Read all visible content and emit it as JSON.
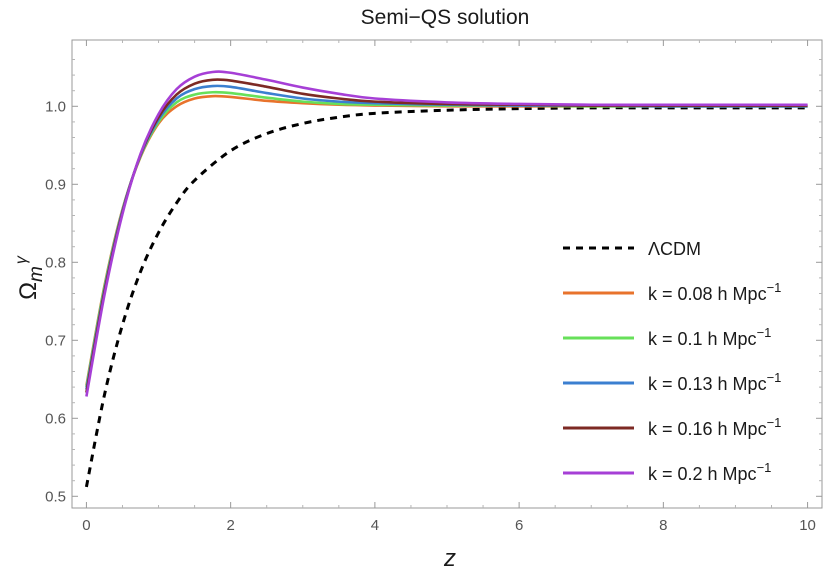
{
  "chart_data": {
    "type": "line",
    "title": "Semi−QS solution",
    "xlabel": "z",
    "ylabel_base": "Ω",
    "ylabel_sub": "m",
    "ylabel_sup": "γ",
    "xlim": [
      -0.2,
      10.2
    ],
    "ylim": [
      0.485,
      1.085
    ],
    "xticks": [
      0,
      2,
      4,
      6,
      8,
      10
    ],
    "yticks": [
      0.5,
      0.6,
      0.7,
      0.8,
      0.9,
      1.0
    ],
    "ytick_labels": [
      "0.5",
      "0.6",
      "0.7",
      "0.8",
      "0.9",
      "1.0"
    ],
    "grid": false,
    "legend_position": "right",
    "series": [
      {
        "name": "ΛCDM",
        "color": "#000000",
        "dashed": true,
        "x": [
          0,
          0.25,
          0.5,
          0.75,
          1.0,
          1.25,
          1.5,
          2.0,
          2.5,
          3.0,
          3.5,
          4.0,
          5.0,
          6.0,
          7.0,
          8.0,
          9.0,
          10.0
        ],
        "y": [
          0.512,
          0.63,
          0.72,
          0.788,
          0.838,
          0.876,
          0.905,
          0.943,
          0.965,
          0.978,
          0.986,
          0.991,
          0.995,
          0.997,
          0.998,
          0.998,
          0.998,
          0.998
        ]
      },
      {
        "name": "k = 0.08 h Mpc",
        "name_sup": "−1",
        "color": "#e8732c",
        "dashed": false,
        "x": [
          0,
          0.25,
          0.5,
          0.75,
          1.0,
          1.25,
          1.5,
          1.75,
          2.0,
          2.5,
          3.0,
          3.5,
          4.0,
          5.0,
          6.0,
          7.0,
          8.0,
          10.0
        ],
        "y": [
          0.642,
          0.77,
          0.868,
          0.935,
          0.978,
          1.0,
          1.01,
          1.013,
          1.012,
          1.007,
          1.004,
          1.002,
          1.001,
          1.0,
          1.0,
          1.0,
          1.0,
          1.0
        ]
      },
      {
        "name": "k = 0.1 h Mpc",
        "name_sup": "−1",
        "color": "#67e05a",
        "dashed": false,
        "x": [
          0,
          0.25,
          0.5,
          0.75,
          1.0,
          1.25,
          1.5,
          1.75,
          2.0,
          2.5,
          3.0,
          3.5,
          4.0,
          5.0,
          6.0,
          7.0,
          8.0,
          10.0
        ],
        "y": [
          0.64,
          0.768,
          0.867,
          0.936,
          0.98,
          1.005,
          1.015,
          1.018,
          1.017,
          1.011,
          1.006,
          1.003,
          1.002,
          1.001,
          1.001,
          1.0,
          1.0,
          1.0
        ]
      },
      {
        "name": "k = 0.13 h Mpc",
        "name_sup": "−1",
        "color": "#3b7fd0",
        "dashed": false,
        "x": [
          0,
          0.25,
          0.5,
          0.75,
          1.0,
          1.25,
          1.5,
          1.75,
          2.0,
          2.5,
          3.0,
          3.5,
          4.0,
          5.0,
          6.0,
          7.0,
          8.0,
          10.0
        ],
        "y": [
          0.637,
          0.765,
          0.866,
          0.937,
          0.983,
          1.01,
          1.022,
          1.026,
          1.025,
          1.017,
          1.01,
          1.006,
          1.004,
          1.002,
          1.001,
          1.001,
          1.0,
          1.0
        ]
      },
      {
        "name": "k = 0.16 h Mpc",
        "name_sup": "−1",
        "color": "#7d2a24",
        "dashed": false,
        "x": [
          0,
          0.25,
          0.5,
          0.75,
          1.0,
          1.25,
          1.5,
          1.75,
          2.0,
          2.5,
          3.0,
          3.5,
          4.0,
          5.0,
          6.0,
          7.0,
          8.0,
          10.0
        ],
        "y": [
          0.633,
          0.762,
          0.864,
          0.938,
          0.986,
          1.015,
          1.029,
          1.034,
          1.033,
          1.025,
          1.016,
          1.01,
          1.006,
          1.003,
          1.002,
          1.001,
          1.001,
          1.001
        ]
      },
      {
        "name": "k = 0.2 h Mpc",
        "name_sup": "−1",
        "color": "#a63fd6",
        "dashed": false,
        "x": [
          0,
          0.25,
          0.5,
          0.75,
          1.0,
          1.25,
          1.5,
          1.75,
          2.0,
          2.5,
          3.0,
          3.5,
          4.0,
          5.0,
          6.0,
          7.0,
          8.0,
          10.0
        ],
        "y": [
          0.628,
          0.758,
          0.862,
          0.939,
          0.99,
          1.022,
          1.038,
          1.044,
          1.043,
          1.034,
          1.024,
          1.016,
          1.01,
          1.005,
          1.003,
          1.002,
          1.002,
          1.002
        ]
      }
    ]
  }
}
